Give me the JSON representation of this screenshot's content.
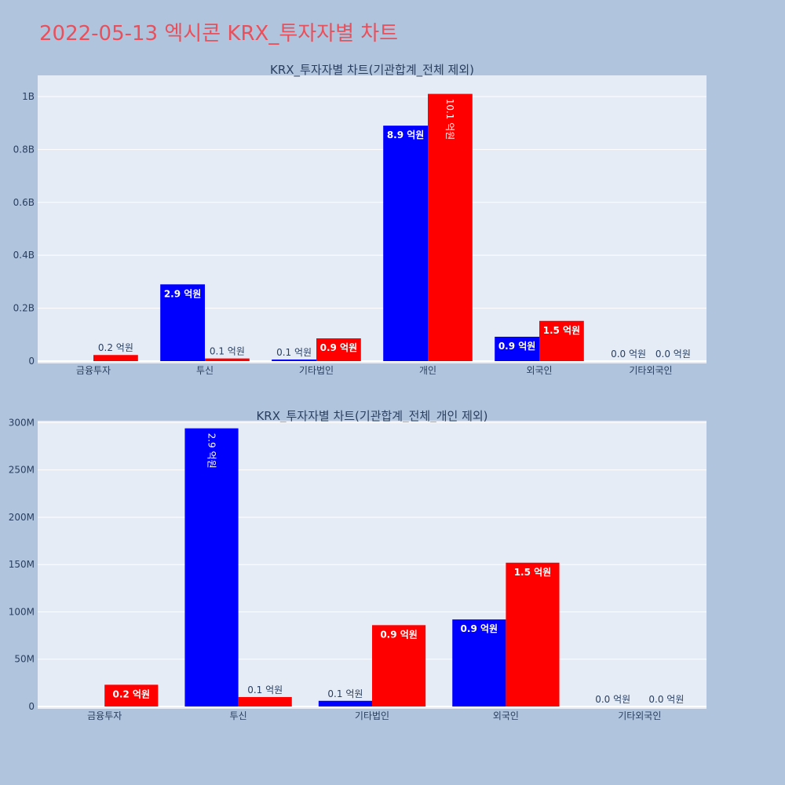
{
  "title": "2022-05-13 엑시콘 KRX_투자자별 차트",
  "colors": {
    "series1": "#0000FF",
    "series2": "#FF0000",
    "plot_bg": "#E5ECF6",
    "page_bg": "#B0C4DE"
  },
  "chart_data": [
    {
      "type": "bar",
      "title": "KRX_투자자별 차트(기관합계_전체 제외)",
      "categories": [
        "금융투자",
        "투신",
        "기타법인",
        "개인",
        "외국인",
        "기타외국인"
      ],
      "ylim": [
        0,
        1080000000
      ],
      "yticks": [
        0,
        200000000,
        400000000,
        600000000,
        800000000,
        1000000000
      ],
      "ytick_labels": [
        "0",
        "0.2B",
        "0.4B",
        "0.6B",
        "0.8B",
        "1B"
      ],
      "grid": true,
      "series": [
        {
          "values": [
            0,
            290000000,
            6000000,
            890000000,
            92000000,
            0
          ],
          "labels": [
            "",
            "2.9 억원",
            "0.1 억원",
            "8.9 억원",
            "0.9 억원",
            "0.0 억원"
          ]
        },
        {
          "values": [
            23000000,
            10000000,
            86000000,
            1010000000,
            152000000,
            0
          ],
          "labels": [
            "0.2 억원",
            "0.1 억원",
            "0.9 억원",
            "10.1 억원",
            "1.5 억원",
            "0.0 억원"
          ]
        }
      ]
    },
    {
      "type": "bar",
      "title": "KRX_투자자별 차트(기관합계_전체_개인 제외)",
      "categories": [
        "금융투자",
        "투신",
        "기타법인",
        "외국인",
        "기타외국인"
      ],
      "ylim": [
        0,
        302000000
      ],
      "yticks": [
        0,
        50000000,
        100000000,
        150000000,
        200000000,
        250000000,
        300000000
      ],
      "ytick_labels": [
        "0",
        "50M",
        "100M",
        "150M",
        "200M",
        "250M",
        "300M"
      ],
      "grid": true,
      "series": [
        {
          "values": [
            0,
            294000000,
            6000000,
            92000000,
            0
          ],
          "labels": [
            "",
            "2.9 억원",
            "0.1 억원",
            "0.9 억원",
            "0.0 억원"
          ]
        },
        {
          "values": [
            23000000,
            10000000,
            86000000,
            152000000,
            0
          ],
          "labels": [
            "0.2 억원",
            "0.1 억원",
            "0.9 억원",
            "1.5 억원",
            "0.0 억원"
          ]
        }
      ]
    }
  ]
}
